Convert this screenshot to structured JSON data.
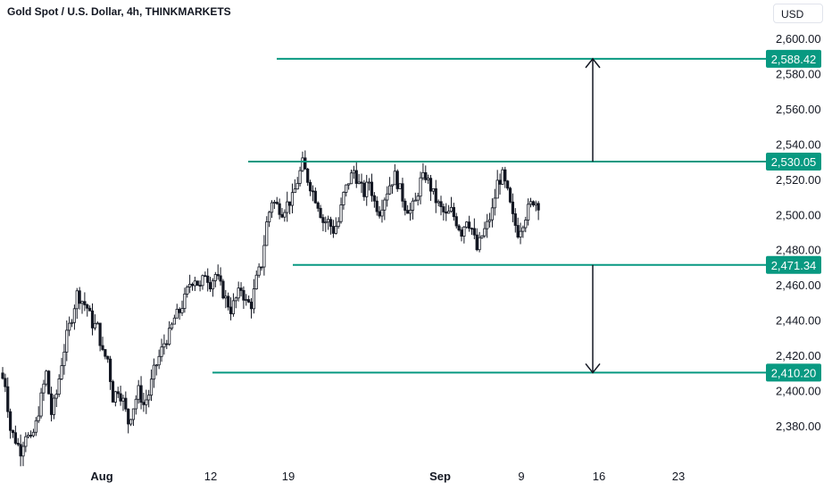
{
  "header": {
    "title": "Gold Spot / U.S. Dollar, 4h, THINKMARKETS",
    "currency": "USD"
  },
  "colors": {
    "level_line": "#089981",
    "badge": "#089981",
    "candle": "#131722",
    "arrow": "#131722"
  },
  "chart_data": {
    "type": "candlestick",
    "symbol": "XAUUSD",
    "timeframe": "4h",
    "ylim": [
      2365,
      2610
    ],
    "y_ticks": [
      "2,600.00",
      "2,580.00",
      "2,560.00",
      "2,540.00",
      "2,520.00",
      "2,500.00",
      "2,480.00",
      "2,460.00",
      "2,440.00",
      "2,420.00",
      "2,400.00",
      "2,380.00"
    ],
    "x_ticks": [
      "Aug",
      "12",
      "19",
      "Sep",
      "9",
      "16",
      "23"
    ],
    "levels": [
      {
        "label": "2,588.42",
        "value": 2588.42
      },
      {
        "label": "2,530.05",
        "value": 2530.05
      },
      {
        "label": "2,471.34",
        "value": 2471.34
      },
      {
        "label": "2,410.20",
        "value": 2410.2
      }
    ],
    "projections": [
      {
        "from": 2530.05,
        "to": 2588.42,
        "direction": "up"
      },
      {
        "from": 2471.34,
        "to": 2410.2,
        "direction": "down"
      }
    ],
    "price_path": [
      2410,
      2404,
      2378,
      2372,
      2366,
      2376,
      2371,
      2381,
      2396,
      2410,
      2387,
      2398,
      2416,
      2431,
      2442,
      2455,
      2451,
      2447,
      2438,
      2436,
      2421,
      2418,
      2396,
      2401,
      2394,
      2382,
      2391,
      2400,
      2392,
      2398,
      2411,
      2419,
      2427,
      2432,
      2441,
      2445,
      2452,
      2461,
      2464,
      2458,
      2467,
      2461,
      2466,
      2459,
      2452,
      2446,
      2452,
      2458,
      2450,
      2449,
      2463,
      2472,
      2495,
      2508,
      2505,
      2502,
      2506,
      2509,
      2519,
      2529,
      2520,
      2513,
      2506,
      2496,
      2496,
      2491,
      2496,
      2511,
      2519,
      2525,
      2517,
      2512,
      2519,
      2507,
      2502,
      2510,
      2517,
      2522,
      2514,
      2505,
      2502,
      2507,
      2519,
      2522,
      2515,
      2508,
      2503,
      2499,
      2502,
      2496,
      2490,
      2498,
      2492,
      2480,
      2488,
      2494,
      2502,
      2518,
      2522,
      2512,
      2498,
      2490,
      2496,
      2503,
      2508,
      2506
    ]
  }
}
